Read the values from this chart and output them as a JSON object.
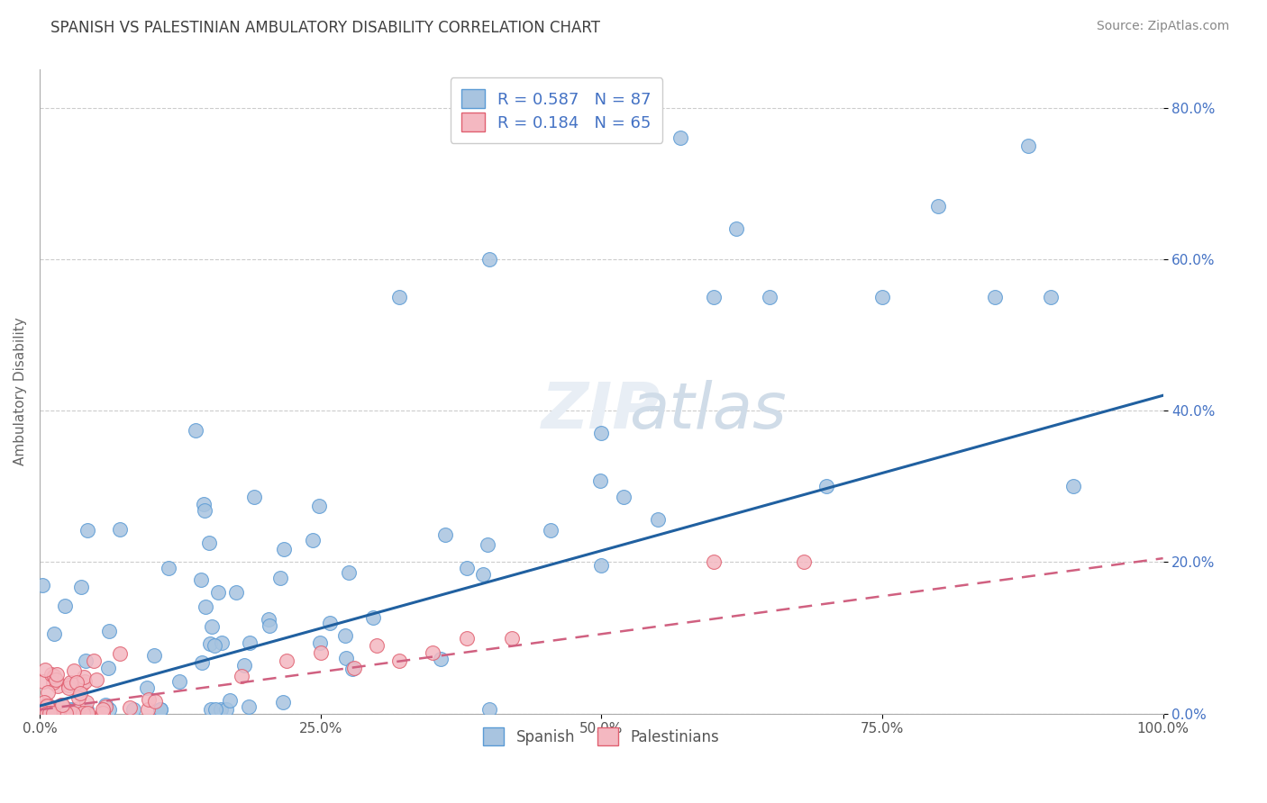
{
  "title": "SPANISH VS PALESTINIAN AMBULATORY DISABILITY CORRELATION CHART",
  "source": "Source: ZipAtlas.com",
  "xlabel": "",
  "ylabel": "Ambulatory Disability",
  "xlim": [
    0,
    1
  ],
  "ylim": [
    0,
    0.85
  ],
  "xticks": [
    0.0,
    0.25,
    0.5,
    0.75,
    1.0
  ],
  "xtick_labels": [
    "0.0%",
    "25.0%",
    "50.0%",
    "75.0%",
    "100.0%"
  ],
  "yticks": [
    0.0,
    0.2,
    0.4,
    0.6,
    0.8
  ],
  "ytick_labels": [
    "0.0%",
    "20.0%",
    "40.0%",
    "60.0%",
    "80.0%"
  ],
  "spanish_color": "#a8c4e0",
  "spanish_edge": "#5b9bd5",
  "palestinian_color": "#f4b8c1",
  "palestinian_edge": "#e06070",
  "spanish_R": 0.587,
  "spanish_N": 87,
  "palestinian_R": 0.184,
  "palestinian_N": 65,
  "spanish_line_color": "#2060a0",
  "palestinian_line_color": "#d06080",
  "legend_text_color": "#4472c4",
  "title_color": "#404040",
  "grid_color": "#cccccc",
  "background_color": "#ffffff",
  "ytick_color": "#4472c4",
  "xtick_color": "#555555",
  "sp_trend_intercept": 0.01,
  "sp_trend_slope": 0.41,
  "pa_trend_intercept": 0.005,
  "pa_trend_slope": 0.2
}
